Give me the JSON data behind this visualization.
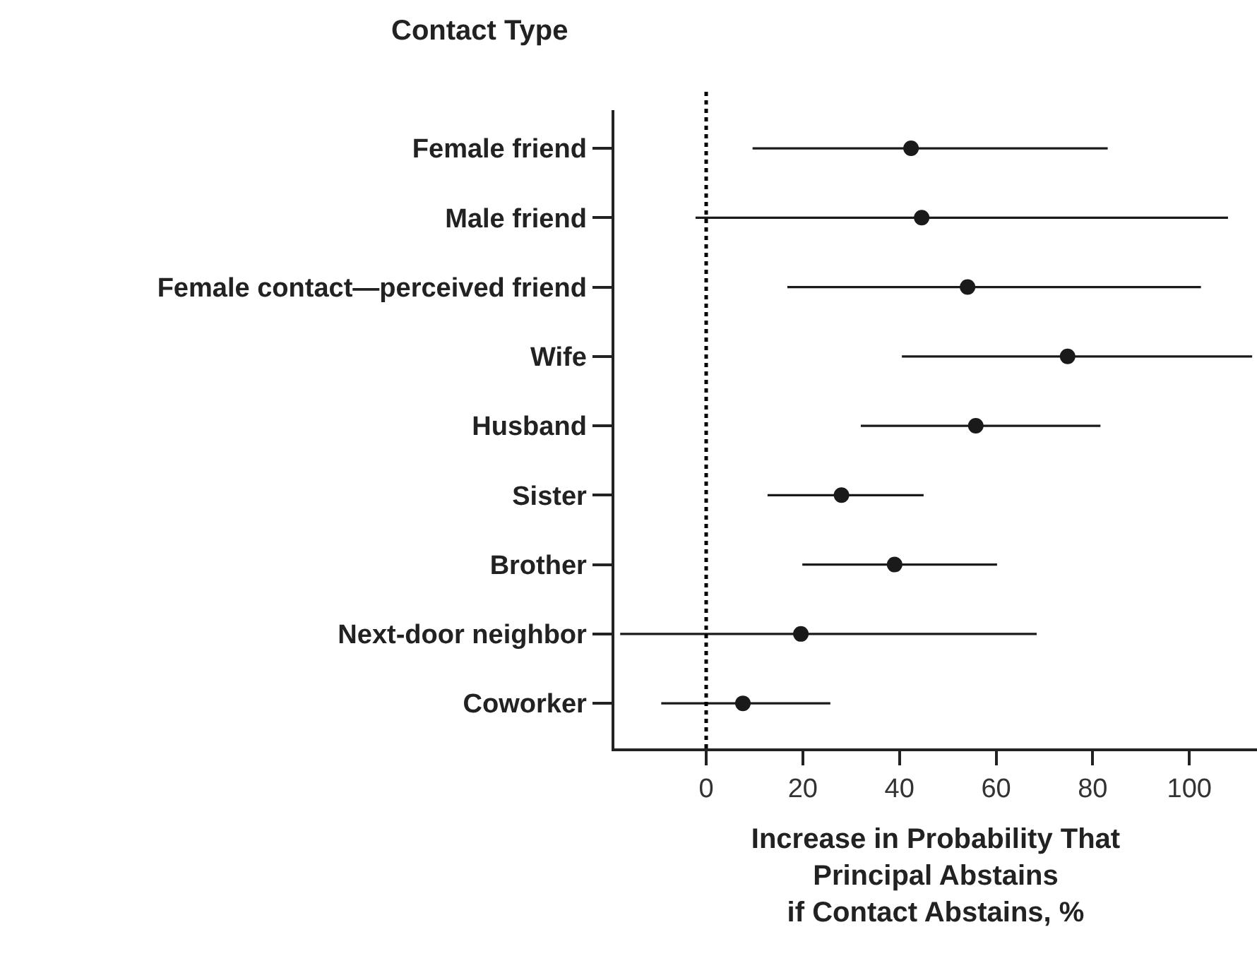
{
  "chart_data": {
    "type": "scatter",
    "orientation": "horizontal",
    "ylabel": "Contact Type",
    "xlabel": "Increase in Probability That\nPrincipal Abstains\nif Contact Abstains, %",
    "categories": [
      "Female friend",
      "Male friend",
      "Female contact—perceived friend",
      "Wife",
      "Husband",
      "Sister",
      "Brother",
      "Next-door neighbor",
      "Coworker"
    ],
    "series": [
      {
        "color": "#1a1a1a",
        "values": [
          42.4,
          44.6,
          54.1,
          74.8,
          55.8,
          28,
          39,
          19.6,
          7.6
        ],
        "errors": [
          [
            9.6,
            83.1
          ],
          [
            -2.2,
            108
          ],
          [
            16.8,
            102.4
          ],
          [
            40.5,
            113
          ],
          [
            32,
            81.6
          ],
          [
            12.7,
            45
          ],
          [
            19.9,
            60.2
          ],
          [
            -17.8,
            68.4
          ],
          [
            -9.3,
            25.7
          ]
        ]
      }
    ],
    "xlim": [
      -19,
      114
    ],
    "xticks": [
      0,
      20,
      40,
      60,
      80,
      100
    ],
    "marker": "circle",
    "ref_lines": [
      {
        "axis": "x",
        "value": 0,
        "line_style": "dotted",
        "color": "#000000"
      }
    ]
  }
}
